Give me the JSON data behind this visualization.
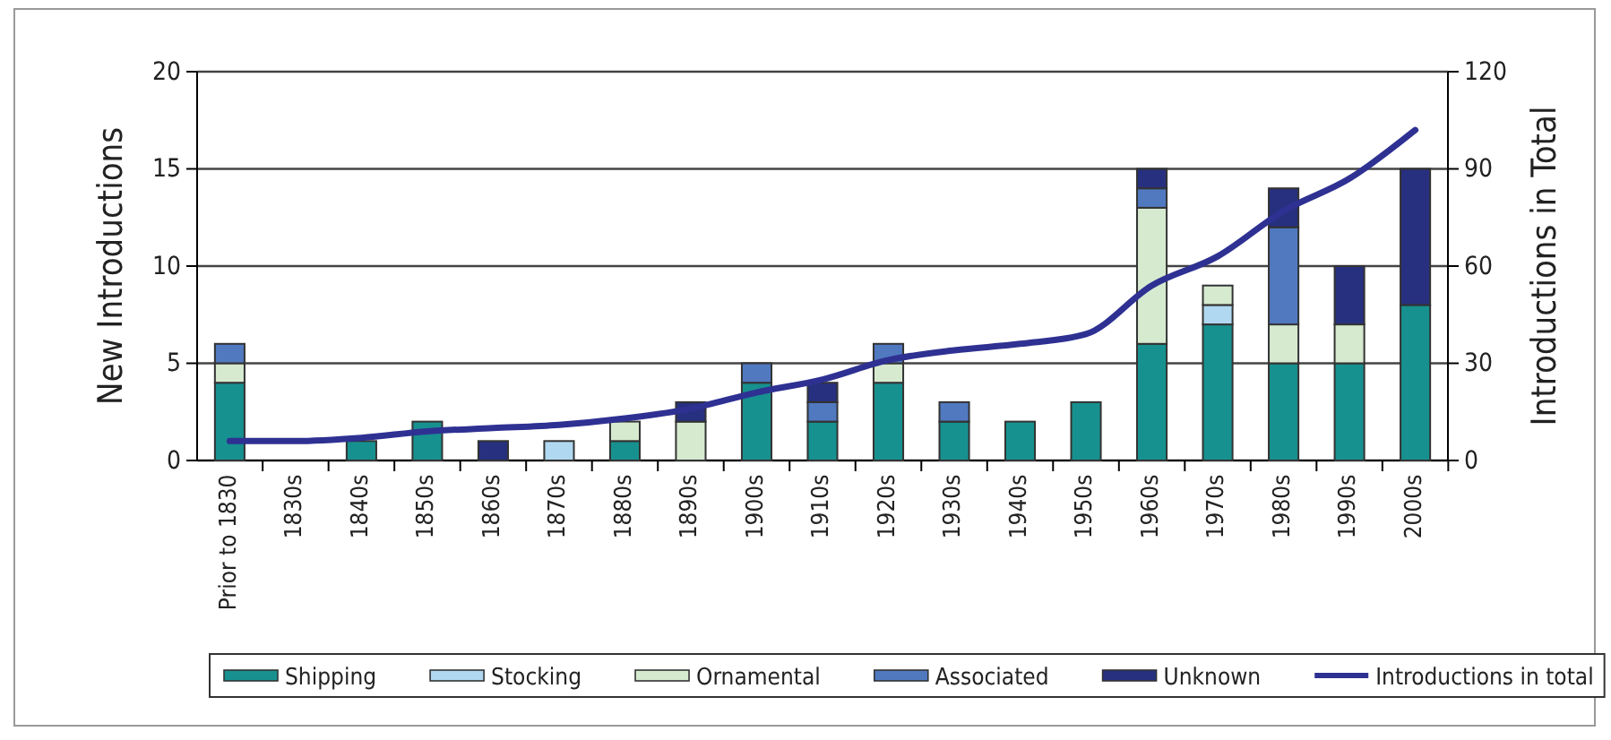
{
  "chart_data": {
    "type": "bar",
    "stacked": true,
    "ylabel": "New Introductions",
    "y2label": "Introductions in Total",
    "categories": [
      "Prior to 1830",
      "1830s",
      "1840s",
      "1850s",
      "1860s",
      "1870s",
      "1880s",
      "1890s",
      "1900s",
      "1910s",
      "1920s",
      "1930s",
      "1940s",
      "1950s",
      "1960s",
      "1970s",
      "1980s",
      "1990s",
      "2000s"
    ],
    "series": [
      {
        "name": "Shipping",
        "color": "#17918f",
        "values": [
          4,
          0,
          1,
          2,
          0,
          0,
          1,
          0,
          4,
          2,
          4,
          2,
          2,
          3,
          6,
          7,
          5,
          5,
          8
        ]
      },
      {
        "name": "Stocking",
        "color": "#b0d8f0",
        "values": [
          0,
          0,
          0,
          0,
          0,
          1,
          0,
          0,
          0,
          0,
          0,
          0,
          0,
          0,
          0,
          1,
          0,
          0,
          0
        ]
      },
      {
        "name": "Ornamental",
        "color": "#d6ead0",
        "values": [
          1,
          0,
          0,
          0,
          0,
          0,
          1,
          2,
          0,
          0,
          1,
          0,
          0,
          0,
          7,
          1,
          2,
          2,
          0
        ]
      },
      {
        "name": "Associated",
        "color": "#5079c0",
        "values": [
          1,
          0,
          0,
          0,
          0,
          0,
          0,
          0,
          1,
          1,
          1,
          1,
          0,
          0,
          1,
          0,
          5,
          0,
          0
        ]
      },
      {
        "name": "Unknown",
        "color": "#27307f",
        "values": [
          0,
          0,
          0,
          0,
          1,
          0,
          0,
          1,
          0,
          1,
          0,
          0,
          0,
          0,
          1,
          0,
          2,
          3,
          7
        ]
      },
      {
        "name": "Introductions in total",
        "type": "line",
        "axis": "y2",
        "color": "#2e3192",
        "values": [
          6,
          6,
          7,
          9,
          10,
          11,
          13,
          16,
          21,
          25,
          31,
          34,
          36,
          39,
          54,
          63,
          77,
          87,
          102
        ]
      }
    ],
    "ylim": [
      0,
      20
    ],
    "yticks": [
      0,
      5,
      10,
      15,
      20
    ],
    "y2lim": [
      0,
      120
    ],
    "y2ticks": [
      0,
      30,
      60,
      90,
      120
    ],
    "grid": "y",
    "legend": "bottom"
  }
}
